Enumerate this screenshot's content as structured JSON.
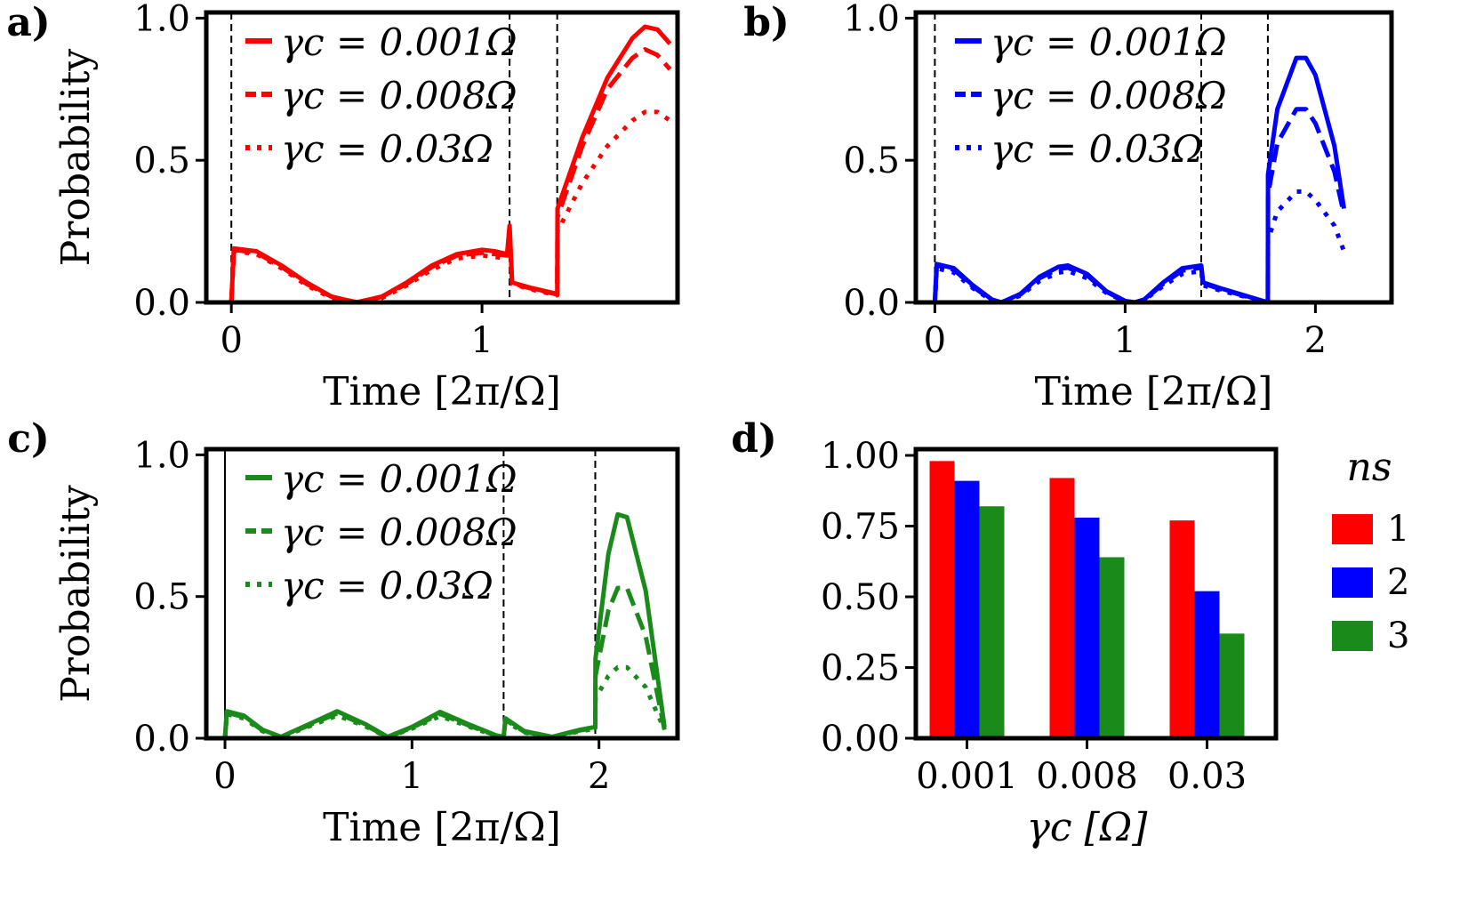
{
  "chart_data": [
    {
      "panel": "a)",
      "type": "line",
      "xlabel": "Time [2π/Ω]",
      "ylabel": "Probability",
      "xlim": [
        -0.1,
        1.78
      ],
      "ylim": [
        0,
        1.02
      ],
      "xticks": [
        0,
        1
      ],
      "yticks": [
        0.0,
        0.5,
        1.0
      ],
      "vlines": [
        0,
        1.11,
        1.3
      ],
      "color": "#ff0000",
      "legend": [
        "γc = 0.001Ω",
        "γc = 0.008Ω",
        "γc = 0.03Ω"
      ],
      "series": [
        {
          "name": "γc = 0.001Ω",
          "style": "solid",
          "x": [
            0,
            0.01,
            0.1,
            0.2,
            0.3,
            0.4,
            0.5,
            0.6,
            0.7,
            0.8,
            0.9,
            1.0,
            1.05,
            1.1,
            1.11,
            1.12,
            1.2,
            1.3,
            1.301,
            1.4,
            1.5,
            1.6,
            1.65,
            1.7,
            1.75
          ],
          "y": [
            0,
            0.19,
            0.18,
            0.13,
            0.07,
            0.02,
            0.0,
            0.02,
            0.07,
            0.13,
            0.17,
            0.185,
            0.18,
            0.17,
            0.27,
            0.07,
            0.05,
            0.03,
            0.33,
            0.58,
            0.79,
            0.93,
            0.97,
            0.96,
            0.91
          ]
        },
        {
          "name": "γc = 0.008Ω",
          "style": "dashed",
          "x": [
            0,
            0.01,
            0.1,
            0.2,
            0.3,
            0.4,
            0.5,
            0.6,
            0.7,
            0.8,
            0.9,
            1.0,
            1.05,
            1.1,
            1.11,
            1.12,
            1.2,
            1.3,
            1.301,
            1.4,
            1.5,
            1.6,
            1.65,
            1.7,
            1.75
          ],
          "y": [
            0,
            0.185,
            0.175,
            0.125,
            0.065,
            0.02,
            0.0,
            0.02,
            0.065,
            0.125,
            0.165,
            0.175,
            0.17,
            0.165,
            0.26,
            0.068,
            0.048,
            0.028,
            0.3,
            0.55,
            0.75,
            0.86,
            0.89,
            0.87,
            0.82
          ]
        },
        {
          "name": "γc = 0.03Ω",
          "style": "dotted",
          "x": [
            0,
            0.01,
            0.1,
            0.2,
            0.3,
            0.4,
            0.5,
            0.6,
            0.7,
            0.8,
            0.9,
            1.0,
            1.05,
            1.1,
            1.11,
            1.12,
            1.2,
            1.3,
            1.301,
            1.4,
            1.5,
            1.6,
            1.65,
            1.7,
            1.75
          ],
          "y": [
            0,
            0.18,
            0.17,
            0.12,
            0.06,
            0.015,
            0.0,
            0.015,
            0.06,
            0.115,
            0.155,
            0.165,
            0.16,
            0.155,
            0.25,
            0.065,
            0.045,
            0.025,
            0.25,
            0.42,
            0.55,
            0.64,
            0.67,
            0.67,
            0.64
          ]
        }
      ]
    },
    {
      "panel": "b)",
      "type": "line",
      "xlabel": "Time [2π/Ω]",
      "ylabel": "",
      "xlim": [
        -0.1,
        2.4
      ],
      "ylim": [
        0,
        1.02
      ],
      "xticks": [
        0,
        1,
        2
      ],
      "yticks": [
        0.0,
        0.5,
        1.0
      ],
      "vlines": [
        0,
        1.4,
        1.75
      ],
      "color": "#0000ff",
      "legend": [
        "γc = 0.001Ω",
        "γc = 0.008Ω",
        "γc = 0.03Ω"
      ],
      "series": [
        {
          "name": "γc = 0.001Ω",
          "style": "solid",
          "x": [
            0,
            0.01,
            0.1,
            0.2,
            0.3,
            0.35,
            0.45,
            0.55,
            0.65,
            0.7,
            0.8,
            0.9,
            1.0,
            1.05,
            1.1,
            1.2,
            1.3,
            1.4,
            1.41,
            1.5,
            1.6,
            1.75,
            1.751,
            1.8,
            1.9,
            1.95,
            2.0,
            2.1,
            2.15
          ],
          "y": [
            0,
            0.135,
            0.12,
            0.06,
            0.01,
            0.0,
            0.03,
            0.09,
            0.125,
            0.13,
            0.1,
            0.04,
            0.005,
            0.0,
            0.01,
            0.07,
            0.12,
            0.13,
            0.07,
            0.05,
            0.03,
            0.0,
            0.45,
            0.68,
            0.86,
            0.86,
            0.8,
            0.55,
            0.33
          ]
        },
        {
          "name": "γc = 0.008Ω",
          "style": "dashed",
          "x": [
            0,
            0.01,
            0.1,
            0.2,
            0.3,
            0.35,
            0.45,
            0.55,
            0.65,
            0.7,
            0.8,
            0.9,
            1.0,
            1.05,
            1.1,
            1.2,
            1.3,
            1.4,
            1.41,
            1.5,
            1.6,
            1.75,
            1.751,
            1.8,
            1.9,
            1.95,
            2.0,
            2.1,
            2.15
          ],
          "y": [
            0,
            0.13,
            0.115,
            0.055,
            0.008,
            0.0,
            0.028,
            0.085,
            0.118,
            0.122,
            0.095,
            0.038,
            0.004,
            0.0,
            0.009,
            0.065,
            0.112,
            0.122,
            0.067,
            0.047,
            0.028,
            0.0,
            0.38,
            0.56,
            0.68,
            0.68,
            0.63,
            0.46,
            0.31
          ]
        },
        {
          "name": "γc = 0.03Ω",
          "style": "dotted",
          "x": [
            0,
            0.01,
            0.1,
            0.2,
            0.3,
            0.35,
            0.45,
            0.55,
            0.65,
            0.7,
            0.8,
            0.9,
            1.0,
            1.05,
            1.1,
            1.2,
            1.3,
            1.4,
            1.41,
            1.5,
            1.6,
            1.75,
            1.751,
            1.8,
            1.9,
            1.95,
            2.0,
            2.1,
            2.15
          ],
          "y": [
            0,
            0.12,
            0.105,
            0.05,
            0.006,
            0.0,
            0.024,
            0.075,
            0.105,
            0.11,
            0.085,
            0.034,
            0.003,
            0.0,
            0.008,
            0.058,
            0.1,
            0.11,
            0.06,
            0.042,
            0.025,
            0.0,
            0.22,
            0.32,
            0.39,
            0.39,
            0.36,
            0.27,
            0.18
          ]
        }
      ]
    },
    {
      "panel": "c)",
      "type": "line",
      "xlabel": "Time [2π/Ω]",
      "ylabel": "Probability",
      "xlim": [
        -0.1,
        2.42
      ],
      "ylim": [
        0,
        1.02
      ],
      "xticks": [
        0,
        1,
        2
      ],
      "yticks": [
        0.0,
        0.5,
        1.0
      ],
      "vlines": [
        0,
        1.49,
        1.98
      ],
      "color": "#1a8a1a",
      "legend": [
        "γc = 0.001Ω",
        "γc = 0.008Ω",
        "γc = 0.03Ω"
      ],
      "series": [
        {
          "name": "γc = 0.001Ω",
          "style": "solid",
          "x": [
            0,
            0.01,
            0.1,
            0.2,
            0.3,
            0.45,
            0.6,
            0.75,
            0.87,
            1.0,
            1.15,
            1.3,
            1.45,
            1.49,
            1.5,
            1.6,
            1.75,
            1.9,
            1.98,
            1.981,
            2.05,
            2.1,
            2.15,
            2.25,
            2.35
          ],
          "y": [
            0,
            0.095,
            0.08,
            0.03,
            0.005,
            0.05,
            0.095,
            0.05,
            0.005,
            0.04,
            0.093,
            0.05,
            0.01,
            0.005,
            0.07,
            0.025,
            0.005,
            0.03,
            0.04,
            0.28,
            0.65,
            0.79,
            0.78,
            0.52,
            0.04
          ]
        },
        {
          "name": "γc = 0.008Ω",
          "style": "dashed",
          "x": [
            0,
            0.01,
            0.1,
            0.2,
            0.3,
            0.45,
            0.6,
            0.75,
            0.87,
            1.0,
            1.15,
            1.3,
            1.45,
            1.49,
            1.5,
            1.6,
            1.75,
            1.9,
            1.98,
            1.981,
            2.05,
            2.1,
            2.15,
            2.25,
            2.35
          ],
          "y": [
            0,
            0.09,
            0.075,
            0.028,
            0.004,
            0.046,
            0.088,
            0.046,
            0.004,
            0.037,
            0.086,
            0.046,
            0.009,
            0.004,
            0.065,
            0.023,
            0.004,
            0.028,
            0.037,
            0.22,
            0.45,
            0.53,
            0.53,
            0.36,
            0.03
          ]
        },
        {
          "name": "γc = 0.03Ω",
          "style": "dotted",
          "x": [
            0,
            0.01,
            0.1,
            0.2,
            0.3,
            0.45,
            0.6,
            0.75,
            0.87,
            1.0,
            1.15,
            1.3,
            1.45,
            1.49,
            1.5,
            1.6,
            1.75,
            1.9,
            1.98,
            1.981,
            2.05,
            2.1,
            2.15,
            2.25,
            2.35
          ],
          "y": [
            0,
            0.085,
            0.07,
            0.025,
            0.003,
            0.042,
            0.08,
            0.042,
            0.003,
            0.034,
            0.078,
            0.042,
            0.008,
            0.003,
            0.06,
            0.02,
            0.003,
            0.025,
            0.033,
            0.14,
            0.22,
            0.25,
            0.25,
            0.18,
            0.03
          ]
        }
      ]
    },
    {
      "panel": "d)",
      "type": "bar",
      "xlabel": "γc [Ω]",
      "ylabel": "",
      "categories": [
        "0.001",
        "0.008",
        "0.03"
      ],
      "yticks": [
        "0.00",
        "0.25",
        "0.50",
        "0.75",
        "1.00"
      ],
      "ylim": [
        0,
        1.0
      ],
      "legend_title": "ns",
      "series": [
        {
          "name": "1",
          "color": "#ff0000",
          "values": [
            0.98,
            0.92,
            0.77
          ]
        },
        {
          "name": "2",
          "color": "#0000ff",
          "values": [
            0.91,
            0.78,
            0.52
          ]
        },
        {
          "name": "3",
          "color": "#1a8a1a",
          "values": [
            0.82,
            0.64,
            0.37
          ]
        }
      ]
    }
  ]
}
